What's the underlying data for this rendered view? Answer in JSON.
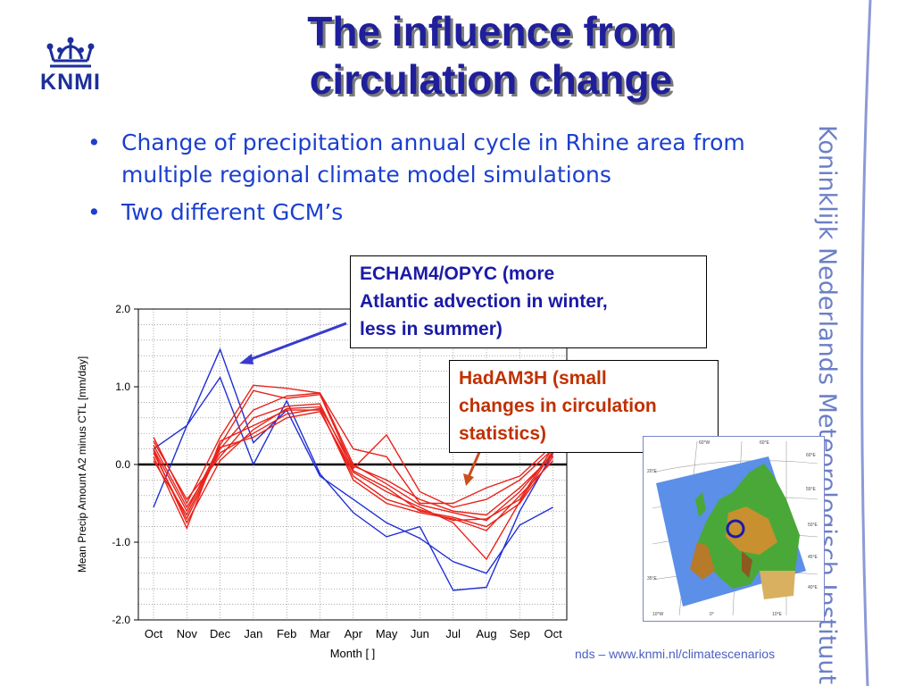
{
  "header": {
    "logo_text": "KNMI",
    "title_line1": "The influence from",
    "title_line2": "circulation change"
  },
  "bullets": [
    "Change of precipitation annual cycle in Rhine area from multiple regional climate model simulations",
    "Two different GCM’s"
  ],
  "side_text": "Koninklijk Nederlands Meteorologisch Instituut",
  "footer_text": "nds – www.knmi.nl/climatescenarios",
  "callouts": {
    "echam_line1": "ECHAM4/OPYC (more",
    "echam_line2": "Atlantic advection in winter,",
    "echam_line3": "less in summer)",
    "hadam_line1": "HadAM3H (small",
    "hadam_line2": "changes in circulation",
    "hadam_line3": "statistics)"
  },
  "colors": {
    "title": "#1f1f9c",
    "bullet": "#1a3fd0",
    "echam": "#1a1aa6",
    "hadam": "#c03000",
    "series_blue": "#1f2fd6",
    "series_red": "#e8231b"
  },
  "map": {
    "lat_labels": [
      "60°E",
      "55°E",
      "50°E",
      "45°E",
      "40°E",
      "35°E"
    ],
    "lon_labels": [
      "10°W",
      "0°",
      "10°E",
      "20°E"
    ],
    "top_labels": [
      "60°W",
      "60°E"
    ]
  },
  "chart_data": {
    "type": "line",
    "xlabel": "Month [ ]",
    "ylabel": "Mean Precip Amount A2 minus CTL [mm/day]",
    "categories": [
      "Oct",
      "Nov",
      "Dec",
      "Jan",
      "Feb",
      "Mar",
      "Apr",
      "May",
      "Jun",
      "Jul",
      "Aug",
      "Sep",
      "Oct"
    ],
    "ylim": [
      -2.0,
      2.0
    ],
    "yticks": [
      "-2.0",
      "-1.0",
      "0.0",
      "1.0",
      "2.0"
    ],
    "grid": true,
    "zero_line": true,
    "series": [
      {
        "group": "blue",
        "values": [
          -0.55,
          0.5,
          1.48,
          0.28,
          0.7,
          -0.15,
          -0.45,
          -0.75,
          -0.95,
          -1.25,
          -1.4,
          -0.78,
          -0.55
        ]
      },
      {
        "group": "blue",
        "values": [
          0.2,
          0.5,
          1.12,
          0.0,
          0.82,
          -0.12,
          -0.62,
          -0.93,
          -0.8,
          -1.62,
          -1.58,
          -0.6,
          0.15
        ]
      },
      {
        "group": "red",
        "values": [
          0.35,
          -0.5,
          0.35,
          1.02,
          0.98,
          0.92,
          0.2,
          0.1,
          -0.5,
          -0.5,
          -0.3,
          -0.15,
          0.25
        ]
      },
      {
        "group": "red",
        "values": [
          0.2,
          -0.6,
          0.25,
          0.95,
          0.85,
          0.9,
          -0.05,
          0.38,
          -0.35,
          -0.55,
          -0.45,
          -0.2,
          0.2
        ]
      },
      {
        "group": "red",
        "values": [
          0.15,
          -0.7,
          0.2,
          0.7,
          0.88,
          0.92,
          0.0,
          -0.25,
          -0.52,
          -0.62,
          -0.72,
          -0.35,
          0.15
        ]
      },
      {
        "group": "red",
        "values": [
          0.3,
          -0.45,
          0.1,
          0.6,
          0.75,
          0.78,
          -0.08,
          -0.3,
          -0.6,
          -0.68,
          -0.8,
          -0.5,
          0.1
        ]
      },
      {
        "group": "red",
        "values": [
          0.1,
          -0.82,
          0.3,
          0.5,
          0.7,
          0.7,
          -0.15,
          -0.45,
          -0.58,
          -0.72,
          -0.7,
          -0.45,
          0.22
        ]
      },
      {
        "group": "red",
        "values": [
          0.25,
          -0.55,
          0.15,
          0.4,
          0.65,
          0.72,
          -0.2,
          -0.5,
          -0.62,
          -0.7,
          -0.85,
          -0.4,
          0.05
        ]
      },
      {
        "group": "red",
        "values": [
          0.05,
          -0.65,
          0.22,
          0.35,
          0.6,
          0.68,
          -0.1,
          -0.35,
          -0.55,
          -0.75,
          -1.22,
          -0.48,
          0.18
        ]
      },
      {
        "group": "red",
        "values": [
          0.18,
          -0.75,
          0.05,
          0.45,
          0.72,
          0.74,
          -0.02,
          -0.2,
          -0.45,
          -0.6,
          -0.65,
          -0.3,
          0.12
        ]
      }
    ]
  }
}
